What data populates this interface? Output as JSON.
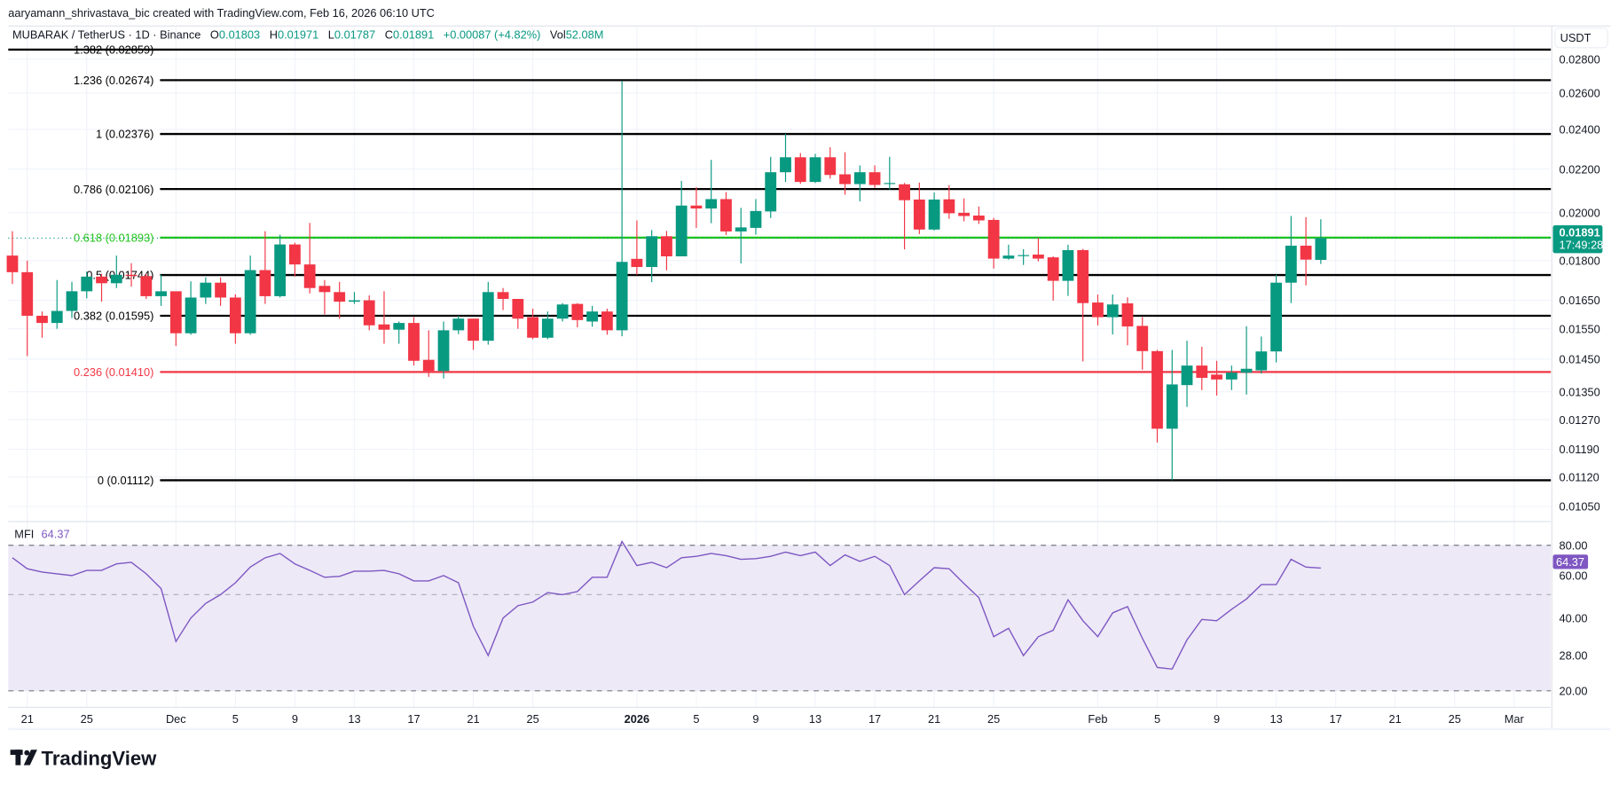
{
  "header": {
    "attribution": "aaryamann_shrivastava_bic created with TradingView.com, Feb 16, 2026 06:10 UTC",
    "symbol": "MUBARAK / TetherUS · 1D · Binance",
    "o_label": "O",
    "o": "0.01803",
    "h_label": "H",
    "h": "0.01971",
    "l_label": "L",
    "l": "0.01787",
    "c_label": "C",
    "c": "0.01891",
    "change": "+0.00087 (+4.82%)",
    "vol_label": "Vol",
    "vol": "52.08M"
  },
  "price_axis": {
    "currency_button": "USDT",
    "last_price": "0.01891",
    "countdown": "17:49:28"
  },
  "mfi": {
    "label": "MFI",
    "value": "64.37"
  },
  "logo": "TradingView",
  "colors": {
    "up": "#089981",
    "down": "#f23645",
    "mfi_line": "#7e57c2",
    "mfi_fill": "#ede9f7",
    "fib_618": "#22c41a",
    "fib_236": "#f23645",
    "fib_default": "#000000"
  },
  "chart_data": [
    {
      "type": "candlestick",
      "title": "MUBARAK / TetherUS · 1D · Binance",
      "yscale": "log",
      "ylim": [
        0.0102,
        0.029
      ],
      "grid": true,
      "y_ticks": [
        "0.02800",
        "0.02600",
        "0.02400",
        "0.02200",
        "0.02000",
        "0.01800",
        "0.01650",
        "0.01550",
        "0.01450",
        "0.01350",
        "0.01270",
        "0.01190",
        "0.01120",
        "0.01050"
      ],
      "x_ticks": [
        {
          "label": "21",
          "date": "2025-11-21"
        },
        {
          "label": "25",
          "date": "2025-11-25"
        },
        {
          "label": "Dec",
          "date": "2025-12-01"
        },
        {
          "label": "5",
          "date": "2025-12-05"
        },
        {
          "label": "9",
          "date": "2025-12-09"
        },
        {
          "label": "13",
          "date": "2025-12-13"
        },
        {
          "label": "17",
          "date": "2025-12-17"
        },
        {
          "label": "21",
          "date": "2025-12-21"
        },
        {
          "label": "25",
          "date": "2025-12-25"
        },
        {
          "label": "2026",
          "date": "2026-01-01"
        },
        {
          "label": "5",
          "date": "2026-01-05"
        },
        {
          "label": "9",
          "date": "2026-01-09"
        },
        {
          "label": "13",
          "date": "2026-01-13"
        },
        {
          "label": "17",
          "date": "2026-01-17"
        },
        {
          "label": "21",
          "date": "2026-01-21"
        },
        {
          "label": "25",
          "date": "2026-01-25"
        },
        {
          "label": "Feb",
          "date": "2026-02-01"
        },
        {
          "label": "5",
          "date": "2026-02-05"
        },
        {
          "label": "9",
          "date": "2026-02-09"
        },
        {
          "label": "13",
          "date": "2026-02-13"
        },
        {
          "label": "17",
          "date": "2026-02-17"
        },
        {
          "label": "21",
          "date": "2026-02-21"
        },
        {
          "label": "25",
          "date": "2026-02-25"
        },
        {
          "label": "Mar",
          "date": "2026-03-01"
        }
      ],
      "fib_levels": [
        {
          "label": "1.382 (0.02859)",
          "price": 0.02859,
          "color": "#000000"
        },
        {
          "label": "1.236 (0.02674)",
          "price": 0.02674,
          "color": "#000000"
        },
        {
          "label": "1 (0.02376)",
          "price": 0.02376,
          "color": "#000000"
        },
        {
          "label": "0.786 (0.02106)",
          "price": 0.02106,
          "color": "#000000"
        },
        {
          "label": "0.618 (0.01893)",
          "price": 0.01893,
          "color": "#22c41a"
        },
        {
          "label": "0.5 (0.01744)",
          "price": 0.01744,
          "color": "#000000"
        },
        {
          "label": "0.382 (0.01595)",
          "price": 0.01595,
          "color": "#000000"
        },
        {
          "label": "0.236 (0.01410)",
          "price": 0.0141,
          "color": "#f23645"
        },
        {
          "label": "0 (0.01112)",
          "price": 0.01112,
          "color": "#000000"
        }
      ],
      "x": [
        "2025-11-20",
        "2025-11-21",
        "2025-11-22",
        "2025-11-23",
        "2025-11-24",
        "2025-11-25",
        "2025-11-26",
        "2025-11-27",
        "2025-11-28",
        "2025-11-29",
        "2025-11-30",
        "2025-12-01",
        "2025-12-02",
        "2025-12-03",
        "2025-12-04",
        "2025-12-05",
        "2025-12-06",
        "2025-12-07",
        "2025-12-08",
        "2025-12-09",
        "2025-12-10",
        "2025-12-11",
        "2025-12-12",
        "2025-12-13",
        "2025-12-14",
        "2025-12-15",
        "2025-12-16",
        "2025-12-17",
        "2025-12-18",
        "2025-12-19",
        "2025-12-20",
        "2025-12-21",
        "2025-12-22",
        "2025-12-23",
        "2025-12-24",
        "2025-12-25",
        "2025-12-26",
        "2025-12-27",
        "2025-12-28",
        "2025-12-29",
        "2025-12-30",
        "2025-12-31",
        "2026-01-01",
        "2026-01-02",
        "2026-01-03",
        "2026-01-04",
        "2026-01-05",
        "2026-01-06",
        "2026-01-07",
        "2026-01-08",
        "2026-01-09",
        "2026-01-10",
        "2026-01-11",
        "2026-01-12",
        "2026-01-13",
        "2026-01-14",
        "2026-01-15",
        "2026-01-16",
        "2026-01-17",
        "2026-01-18",
        "2026-01-19",
        "2026-01-20",
        "2026-01-21",
        "2026-01-22",
        "2026-01-23",
        "2026-01-24",
        "2026-01-25",
        "2026-01-26",
        "2026-01-27",
        "2026-01-28",
        "2026-01-29",
        "2026-01-30",
        "2026-01-31",
        "2026-02-01",
        "2026-02-02",
        "2026-02-03",
        "2026-02-04",
        "2026-02-05",
        "2026-02-06",
        "2026-02-07",
        "2026-02-08",
        "2026-02-09",
        "2026-02-10",
        "2026-02-11",
        "2026-02-12",
        "2026-02-13",
        "2026-02-14",
        "2026-02-15",
        "2026-02-16"
      ],
      "ohlc": [
        [
          0.0182,
          0.0192,
          0.0171,
          0.01755
        ],
        [
          0.01755,
          0.018,
          0.0146,
          0.01595
        ],
        [
          0.01595,
          0.0161,
          0.0152,
          0.0157
        ],
        [
          0.0157,
          0.01725,
          0.0155,
          0.01612
        ],
        [
          0.01612,
          0.01718,
          0.01587,
          0.01683
        ],
        [
          0.01683,
          0.01757,
          0.01657,
          0.01738
        ],
        [
          0.01738,
          0.01749,
          0.01645,
          0.01713
        ],
        [
          0.01713,
          0.0182,
          0.01695,
          0.01745
        ],
        [
          0.01745,
          0.0179,
          0.017,
          0.0174
        ],
        [
          0.0174,
          0.0175,
          0.01655,
          0.01665
        ],
        [
          0.01665,
          0.01745,
          0.0163,
          0.01683
        ],
        [
          0.01683,
          0.01683,
          0.01493,
          0.01535
        ],
        [
          0.01535,
          0.0172,
          0.0153,
          0.0166
        ],
        [
          0.0166,
          0.01735,
          0.01637,
          0.01715
        ],
        [
          0.01715,
          0.01735,
          0.0163,
          0.0166
        ],
        [
          0.0166,
          0.01672,
          0.015,
          0.01535
        ],
        [
          0.01535,
          0.0182,
          0.0153,
          0.01763
        ],
        [
          0.01763,
          0.0192,
          0.01637,
          0.01665
        ],
        [
          0.01665,
          0.01905,
          0.0166,
          0.01865
        ],
        [
          0.01865,
          0.01872,
          0.01738,
          0.01785
        ],
        [
          0.01785,
          0.01955,
          0.01675,
          0.01695
        ],
        [
          0.01703,
          0.01725,
          0.016,
          0.0168
        ],
        [
          0.0168,
          0.01718,
          0.01585,
          0.01645
        ],
        [
          0.01645,
          0.0168,
          0.01637,
          0.0165
        ],
        [
          0.0165,
          0.01668,
          0.01545,
          0.01562
        ],
        [
          0.01565,
          0.01683,
          0.015,
          0.01547
        ],
        [
          0.01547,
          0.01575,
          0.015,
          0.0157
        ],
        [
          0.0157,
          0.0159,
          0.0143,
          0.01445
        ],
        [
          0.01448,
          0.01545,
          0.01395,
          0.01413
        ],
        [
          0.01413,
          0.01575,
          0.0139,
          0.01545
        ],
        [
          0.01545,
          0.01595,
          0.01532,
          0.01585
        ],
        [
          0.01585,
          0.01585,
          0.0148,
          0.0151
        ],
        [
          0.0151,
          0.01718,
          0.01497,
          0.0168
        ],
        [
          0.0168,
          0.01695,
          0.01615,
          0.01655
        ],
        [
          0.01655,
          0.01655,
          0.0155,
          0.01585
        ],
        [
          0.0159,
          0.0162,
          0.01515,
          0.0152
        ],
        [
          0.0152,
          0.0161,
          0.01515,
          0.01585
        ],
        [
          0.01585,
          0.0164,
          0.01575,
          0.01635
        ],
        [
          0.01637,
          0.0164,
          0.01555,
          0.0158
        ],
        [
          0.01575,
          0.0163,
          0.01557,
          0.0161
        ],
        [
          0.0161,
          0.0162,
          0.0153,
          0.01545
        ],
        [
          0.01545,
          0.0267,
          0.01525,
          0.01795
        ],
        [
          0.01807,
          0.01966,
          0.01745,
          0.01775
        ],
        [
          0.01775,
          0.01925,
          0.01717,
          0.01899
        ],
        [
          0.01899,
          0.01921,
          0.01762,
          0.01817
        ],
        [
          0.01817,
          0.02144,
          0.01817,
          0.02031
        ],
        [
          0.02031,
          0.02114,
          0.01934,
          0.02018
        ],
        [
          0.02018,
          0.02245,
          0.01954,
          0.0206
        ],
        [
          0.0206,
          0.02092,
          0.01904,
          0.01919
        ],
        [
          0.01919,
          0.02021,
          0.01789,
          0.01936
        ],
        [
          0.01934,
          0.0206,
          0.01906,
          0.02007
        ],
        [
          0.02005,
          0.0226,
          0.01976,
          0.02185
        ],
        [
          0.02185,
          0.02376,
          0.02139,
          0.02258
        ],
        [
          0.02258,
          0.02279,
          0.0213,
          0.02139
        ],
        [
          0.02139,
          0.02275,
          0.02134,
          0.02258
        ],
        [
          0.02258,
          0.02308,
          0.02155,
          0.02172
        ],
        [
          0.02175,
          0.02283,
          0.0208,
          0.02129
        ],
        [
          0.02129,
          0.02218,
          0.0205,
          0.02185
        ],
        [
          0.02185,
          0.02218,
          0.02111,
          0.02125
        ],
        [
          0.02132,
          0.0226,
          0.02104,
          0.02134
        ],
        [
          0.02128,
          0.02134,
          0.01845,
          0.02055
        ],
        [
          0.02058,
          0.02136,
          0.01908,
          0.01927
        ],
        [
          0.01927,
          0.0209,
          0.01923,
          0.02058
        ],
        [
          0.02059,
          0.02124,
          0.01973,
          0.01997
        ],
        [
          0.01999,
          0.02063,
          0.01962,
          0.01985
        ],
        [
          0.01987,
          0.02027,
          0.01951,
          0.01966
        ],
        [
          0.01968,
          0.01977,
          0.01769,
          0.01808
        ],
        [
          0.01808,
          0.01864,
          0.01804,
          0.0182
        ],
        [
          0.0182,
          0.01846,
          0.01783,
          0.01822
        ],
        [
          0.01824,
          0.01892,
          0.01797,
          0.01808
        ],
        [
          0.01813,
          0.01817,
          0.01649,
          0.01722
        ],
        [
          0.01722,
          0.01864,
          0.01666,
          0.01842
        ],
        [
          0.01842,
          0.01847,
          0.01443,
          0.0164
        ],
        [
          0.01642,
          0.01671,
          0.01562,
          0.0159
        ],
        [
          0.0159,
          0.01671,
          0.01531,
          0.01635
        ],
        [
          0.01639,
          0.01661,
          0.01495,
          0.01558
        ],
        [
          0.0156,
          0.0159,
          0.01417,
          0.01476
        ],
        [
          0.01476,
          0.0148,
          0.01208,
          0.01245
        ],
        [
          0.01245,
          0.0148,
          0.01112,
          0.01372
        ],
        [
          0.0137,
          0.0151,
          0.01306,
          0.0143
        ],
        [
          0.0143,
          0.0149,
          0.01355,
          0.01392
        ],
        [
          0.01402,
          0.01445,
          0.01339,
          0.01387
        ],
        [
          0.01387,
          0.0143,
          0.01355,
          0.01408
        ],
        [
          0.01408,
          0.01559,
          0.01342,
          0.0142
        ],
        [
          0.01415,
          0.01524,
          0.01405,
          0.01475
        ],
        [
          0.01475,
          0.01745,
          0.0144,
          0.01715
        ],
        [
          0.01715,
          0.01985,
          0.0164,
          0.0186
        ],
        [
          0.0186,
          0.0198,
          0.01705,
          0.01804
        ],
        [
          0.01803,
          0.01971,
          0.01787,
          0.01891
        ]
      ]
    },
    {
      "type": "line",
      "title": "MFI",
      "yscale": "log",
      "ylim": [
        18,
        90
      ],
      "bands": [
        20,
        50,
        80
      ],
      "y_ticks": [
        "80.00",
        "60.00",
        "40.00",
        "28.00",
        "20.00"
      ],
      "values": [
        71,
        64,
        62,
        61,
        60,
        63,
        63,
        67,
        68,
        61,
        53,
        32,
        40,
        46,
        50,
        56,
        65,
        71,
        74,
        67,
        63,
        59,
        59.5,
        62.5,
        62.5,
        63,
        61,
        57,
        57,
        60,
        56,
        37,
        28,
        40,
        45,
        46.6,
        51,
        50,
        51.5,
        59,
        59,
        83,
        66,
        68,
        64.6,
        71,
        72,
        74,
        72.5,
        70,
        70.5,
        72,
        75,
        72.5,
        75,
        66,
        73,
        68.6,
        72,
        66,
        50,
        57,
        64.6,
        64,
        55.6,
        48.6,
        33.5,
        36.3,
        28,
        33.5,
        35.6,
        47.6,
        39,
        33.5,
        42,
        44.6,
        33,
        25,
        24.6,
        32.5,
        39.5,
        39,
        43.5,
        48,
        55,
        55,
        70,
        65,
        64.37
      ]
    }
  ]
}
